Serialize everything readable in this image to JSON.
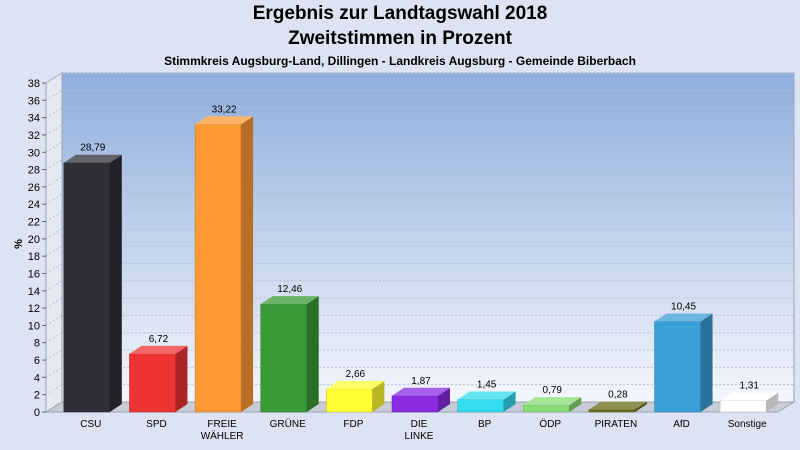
{
  "title": "Ergebnis zur Landtagswahl 2018",
  "subtitle": "Zweitstimmen in Prozent",
  "subtitle2": "Stimmkreis Augsburg-Land, Dillingen - Landkreis Augsburg - Gemeinde Biberbach",
  "chart_data": {
    "type": "bar",
    "title": "Ergebnis zur Landtagswahl 2018",
    "subtitle": "Zweitstimmen in Prozent",
    "xlabel": "",
    "ylabel": "%",
    "ylim": [
      0,
      38
    ],
    "yticks": [
      0,
      2,
      4,
      6,
      8,
      10,
      12,
      14,
      16,
      18,
      20,
      22,
      24,
      26,
      28,
      30,
      32,
      34,
      36,
      38
    ],
    "grid": true,
    "categories": [
      {
        "line1": "CSU",
        "line2": ""
      },
      {
        "line1": "SPD",
        "line2": ""
      },
      {
        "line1": "FREIE",
        "line2": "WÄHLER"
      },
      {
        "line1": "GRÜNE",
        "line2": ""
      },
      {
        "line1": "FDP",
        "line2": ""
      },
      {
        "line1": "DIE",
        "line2": "LINKE"
      },
      {
        "line1": "BP",
        "line2": ""
      },
      {
        "line1": "ÖDP",
        "line2": ""
      },
      {
        "line1": "PIRATEN",
        "line2": ""
      },
      {
        "line1": "AfD",
        "line2": ""
      },
      {
        "line1": "Sonstige",
        "line2": ""
      }
    ],
    "values": [
      28.79,
      6.72,
      33.22,
      12.46,
      2.66,
      1.87,
      1.45,
      0.79,
      0.28,
      10.45,
      1.31
    ],
    "value_labels": [
      "28,79",
      "6,72",
      "33,22",
      "12,46",
      "2,66",
      "1,87",
      "1,45",
      "0,79",
      "0,28",
      "10,45",
      "1,31"
    ],
    "colors": [
      "#2f2f38",
      "#ee3333",
      "#ff9933",
      "#3a9a35",
      "#ffff33",
      "#8a2be2",
      "#33ddee",
      "#88dd77",
      "#6b6b1a",
      "#3a9fd6",
      "#ffffff"
    ]
  }
}
